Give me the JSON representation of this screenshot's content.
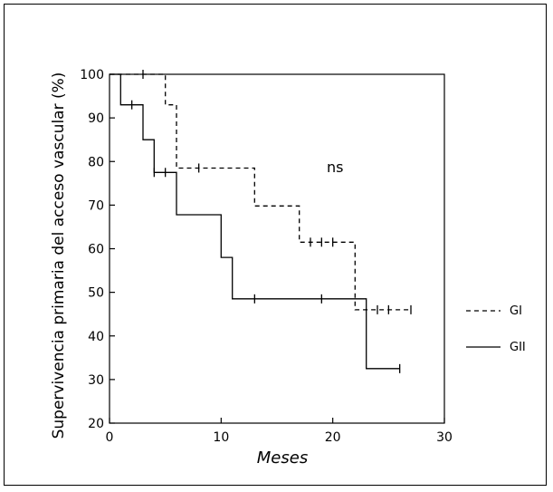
{
  "chart_data": {
    "type": "line",
    "subtype": "kaplan-meier step curve",
    "xlabel": "Meses",
    "ylabel": "Supervivencia primaria del acceso vascular (%)",
    "xlim": [
      0,
      30
    ],
    "ylim": [
      20,
      100
    ],
    "xticks": [
      0,
      10,
      20,
      30
    ],
    "yticks": [
      20,
      30,
      40,
      50,
      60,
      70,
      80,
      90,
      100
    ],
    "grid": false,
    "legend_position": "right",
    "annotation": "ns",
    "series": [
      {
        "name": "GI",
        "style": "dashed",
        "color": "#000000",
        "steps": [
          [
            0,
            100
          ],
          [
            5,
            100
          ],
          [
            5,
            93
          ],
          [
            6,
            93
          ],
          [
            6,
            78.5
          ],
          [
            13,
            78.5
          ],
          [
            13,
            69.8
          ],
          [
            17,
            69.8
          ],
          [
            17,
            61.5
          ],
          [
            22,
            61.5
          ],
          [
            22,
            46
          ],
          [
            27,
            46
          ]
        ],
        "censored": [
          [
            3,
            100
          ],
          [
            8,
            78.5
          ],
          [
            18,
            61.5
          ],
          [
            19,
            61.5
          ],
          [
            20,
            61.5
          ],
          [
            24,
            46
          ],
          [
            25,
            46
          ],
          [
            27,
            46
          ]
        ]
      },
      {
        "name": "GII",
        "style": "solid",
        "color": "#000000",
        "steps": [
          [
            0,
            100
          ],
          [
            1,
            100
          ],
          [
            1,
            93
          ],
          [
            3,
            93
          ],
          [
            3,
            85
          ],
          [
            4,
            85
          ],
          [
            4,
            77.5
          ],
          [
            6,
            77.5
          ],
          [
            6,
            67.8
          ],
          [
            10,
            67.8
          ],
          [
            10,
            58
          ],
          [
            11,
            58
          ],
          [
            11,
            48.5
          ],
          [
            23,
            48.5
          ],
          [
            23,
            32.5
          ],
          [
            26,
            32.5
          ]
        ],
        "censored": [
          [
            2,
            93
          ],
          [
            4,
            77.5
          ],
          [
            5,
            77.5
          ],
          [
            13,
            48.5
          ],
          [
            19,
            48.5
          ],
          [
            26,
            32.5
          ]
        ]
      }
    ]
  }
}
